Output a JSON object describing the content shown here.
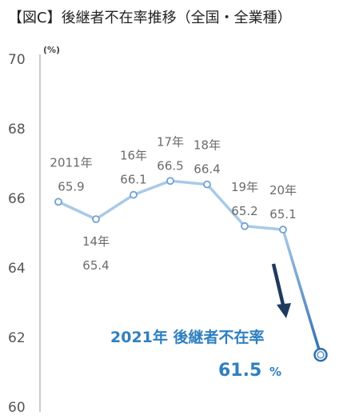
{
  "title": "【図C】後継者不在率推移（全国・全業種）",
  "chart_data": {
    "type": "line",
    "unit": "(%)",
    "ylim": [
      60,
      70
    ],
    "yticks": [
      60,
      62,
      64,
      66,
      68,
      70
    ],
    "x": [
      "2011年",
      "14年",
      "16年",
      "17年",
      "18年",
      "19年",
      "20年",
      "2021年"
    ],
    "values": [
      65.9,
      65.4,
      66.1,
      66.5,
      66.4,
      65.2,
      65.1,
      61.5
    ],
    "point_labels": [
      {
        "year": "2011年",
        "value": "65.9"
      },
      {
        "year": "14年",
        "value": "65.4"
      },
      {
        "year": "16年",
        "value": "66.1"
      },
      {
        "year": "17年",
        "value": "66.5"
      },
      {
        "year": "18年",
        "value": "66.4"
      },
      {
        "year": "19年",
        "value": "65.2"
      },
      {
        "year": "20年",
        "value": "65.1"
      }
    ],
    "highlight": {
      "line1": "2021年 後継者不在率",
      "value": "61.5",
      "unit": "%"
    },
    "colors": {
      "line": "#a9c9e8",
      "drop_line": "#2f6fb0",
      "arrow": "#1f3a5f",
      "axis": "#b8b8b8",
      "highlight_text": "#2f7fc0"
    }
  }
}
